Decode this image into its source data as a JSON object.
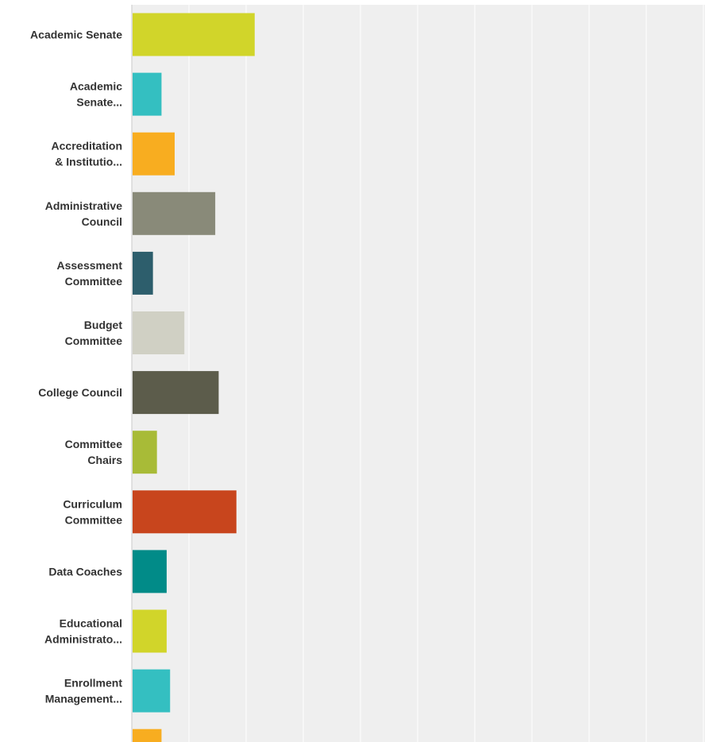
{
  "chart_data": {
    "type": "bar",
    "orientation": "horizontal",
    "categories": [
      [
        "Academic Senate"
      ],
      [
        "Academic",
        "Senate..."
      ],
      [
        "Accreditation",
        "& Institutio..."
      ],
      [
        "Administrative",
        "Council"
      ],
      [
        "Assessment",
        "Committee"
      ],
      [
        "Budget",
        "Committee"
      ],
      [
        "College Council"
      ],
      [
        "Committee",
        "Chairs"
      ],
      [
        "Curriculum",
        "Committee"
      ],
      [
        "Data Coaches"
      ],
      [
        "Educational",
        "Administrato..."
      ],
      [
        "Enrollment",
        "Management..."
      ],
      [
        ""
      ]
    ],
    "values": [
      21.5,
      5.2,
      7.5,
      14.6,
      3.7,
      9.2,
      15.2,
      4.4,
      18.3,
      6.1,
      6.1,
      6.7,
      5.2
    ],
    "colors": [
      "#d1d52a",
      "#34bfc1",
      "#f8ad20",
      "#898a79",
      "#2d5e6c",
      "#d0d0c4",
      "#5c5c4b",
      "#a8bb37",
      "#c8451d",
      "#018b88",
      "#d1d52a",
      "#34bfc1",
      "#f8ad20"
    ],
    "xlim": [
      0,
      100
    ],
    "grid": true,
    "gridlines": [
      10,
      20,
      30,
      40,
      50,
      60,
      70,
      80,
      90,
      100
    ],
    "title": "",
    "xlabel": "",
    "ylabel": ""
  }
}
